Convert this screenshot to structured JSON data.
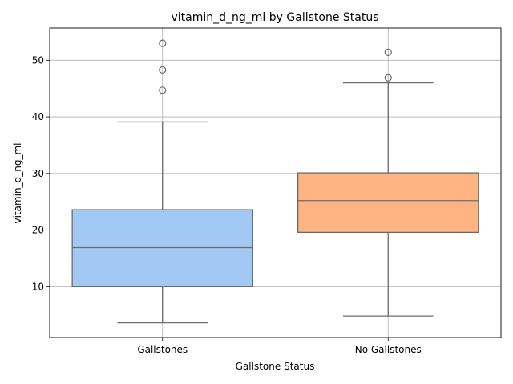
{
  "chart_data": {
    "type": "box",
    "title": "vitamin_d_ng_ml by Gallstone Status",
    "xlabel": "Gallstone Status",
    "ylabel": "vitamin_d_ng_ml",
    "ylim": [
      1.0,
      55.7
    ],
    "yticks": [
      10,
      20,
      30,
      40,
      50
    ],
    "grid": true,
    "categories": [
      "Gallstones",
      "No Gallstones"
    ],
    "boxes": [
      {
        "category": "Gallstones",
        "whisker_low": 3.6,
        "q1": 10.0,
        "median": 16.9,
        "q3": 23.6,
        "whisker_high": 39.1,
        "outliers": [
          44.7,
          48.3,
          53.0
        ],
        "color": "#a1c9f4"
      },
      {
        "category": "No Gallstones",
        "whisker_low": 4.8,
        "q1": 19.6,
        "median": 25.2,
        "q3": 30.1,
        "whisker_high": 46.0,
        "outliers": [
          46.9,
          51.4
        ],
        "color": "#ffb482"
      }
    ],
    "colors": {
      "grid": "#b0b0b0",
      "line": "#6b6b6b",
      "axes": "#000000"
    }
  }
}
